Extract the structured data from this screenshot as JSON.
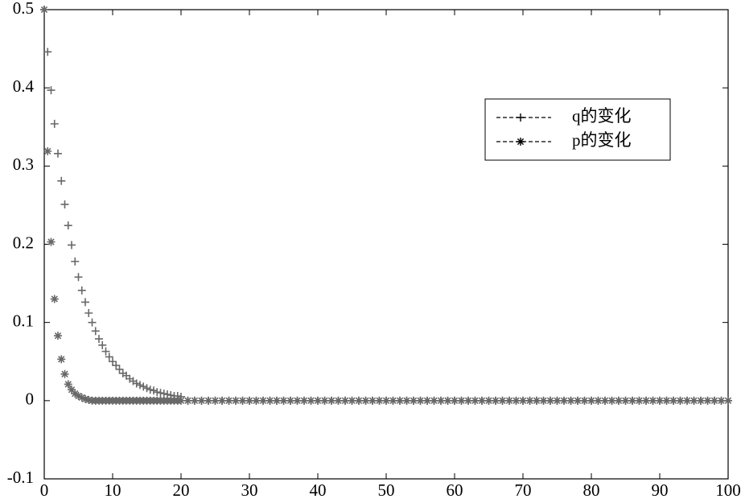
{
  "chart_data": {
    "type": "scatter",
    "x": [
      0,
      0.5,
      1,
      1.5,
      2,
      2.5,
      3,
      3.5,
      4,
      4.5,
      5,
      5.5,
      6,
      6.5,
      7,
      7.5,
      8,
      8.5,
      9,
      9.5,
      10,
      10.5,
      11,
      11.5,
      12,
      12.5,
      13,
      13.5,
      14,
      14.5,
      15,
      15.5,
      16,
      16.5,
      17,
      17.5,
      18,
      18.5,
      19,
      19.5,
      20,
      21,
      22,
      23,
      24,
      25,
      26,
      27,
      28,
      29,
      30,
      31,
      32,
      33,
      34,
      35,
      36,
      37,
      38,
      39,
      40,
      41,
      42,
      43,
      44,
      45,
      46,
      47,
      48,
      49,
      50,
      51,
      52,
      53,
      54,
      55,
      56,
      57,
      58,
      59,
      60,
      61,
      62,
      63,
      64,
      65,
      66,
      67,
      68,
      69,
      70,
      71,
      72,
      73,
      74,
      75,
      76,
      77,
      78,
      79,
      80,
      81,
      82,
      83,
      84,
      85,
      86,
      87,
      88,
      89,
      90,
      91,
      92,
      93,
      94,
      95,
      96,
      97,
      98,
      99,
      100
    ],
    "series": [
      {
        "name": "q的变化",
        "marker": "plus",
        "color": "#686868",
        "values": [
          0.5,
          0.446,
          0.397,
          0.354,
          0.316,
          0.281,
          0.251,
          0.224,
          0.199,
          0.178,
          0.158,
          0.141,
          0.126,
          0.112,
          0.1,
          0.089,
          0.079,
          0.071,
          0.063,
          0.056,
          0.05,
          0.045,
          0.04,
          0.035,
          0.032,
          0.028,
          0.025,
          0.022,
          0.02,
          0.018,
          0.016,
          0.014,
          0.013,
          0.011,
          0.01,
          0.009,
          0.008,
          0.007,
          0.006,
          0.006,
          0.005,
          0,
          0,
          0,
          0,
          0,
          0,
          0,
          0,
          0,
          0,
          0,
          0,
          0,
          0,
          0,
          0,
          0,
          0,
          0,
          0,
          0,
          0,
          0,
          0,
          0,
          0,
          0,
          0,
          0,
          0,
          0,
          0,
          0,
          0,
          0,
          0,
          0,
          0,
          0,
          0,
          0,
          0,
          0,
          0,
          0,
          0,
          0,
          0,
          0,
          0,
          0,
          0,
          0,
          0,
          0,
          0,
          0,
          0,
          0,
          0,
          0,
          0,
          0,
          0,
          0,
          0,
          0,
          0,
          0,
          0,
          0,
          0,
          0,
          0,
          0,
          0,
          0,
          0,
          0,
          0
        ]
      },
      {
        "name": "p的变化",
        "marker": "star",
        "color": "#686868",
        "values": [
          0.5,
          0.319,
          0.203,
          0.13,
          0.083,
          0.053,
          0.034,
          0.021,
          0.014,
          0.009,
          0.006,
          0.004,
          0.002,
          0.001,
          0,
          0,
          0,
          0,
          0,
          0,
          0,
          0,
          0,
          0,
          0,
          0,
          0,
          0,
          0,
          0,
          0,
          0,
          0,
          0,
          0,
          0,
          0,
          0,
          0,
          0,
          0,
          0,
          0,
          0,
          0,
          0,
          0,
          0,
          0,
          0,
          0,
          0,
          0,
          0,
          0,
          0,
          0,
          0,
          0,
          0,
          0,
          0,
          0,
          0,
          0,
          0,
          0,
          0,
          0,
          0,
          0,
          0,
          0,
          0,
          0,
          0,
          0,
          0,
          0,
          0,
          0,
          0,
          0,
          0,
          0,
          0,
          0,
          0,
          0,
          0,
          0,
          0,
          0,
          0,
          0,
          0,
          0,
          0,
          0,
          0,
          0,
          0,
          0,
          0,
          0,
          0,
          0,
          0,
          0,
          0,
          0,
          0,
          0,
          0,
          0,
          0,
          0,
          0,
          0,
          0,
          0
        ]
      }
    ],
    "xlim": [
      0,
      100
    ],
    "xticks": [
      0,
      10,
      20,
      30,
      40,
      50,
      60,
      70,
      80,
      90,
      100
    ],
    "ylim": [
      -0.1,
      0.5
    ],
    "yticks": [
      -0.1,
      0,
      0.1,
      0.2,
      0.3,
      0.4,
      0.5
    ],
    "grid": false,
    "legend": "upper right"
  }
}
